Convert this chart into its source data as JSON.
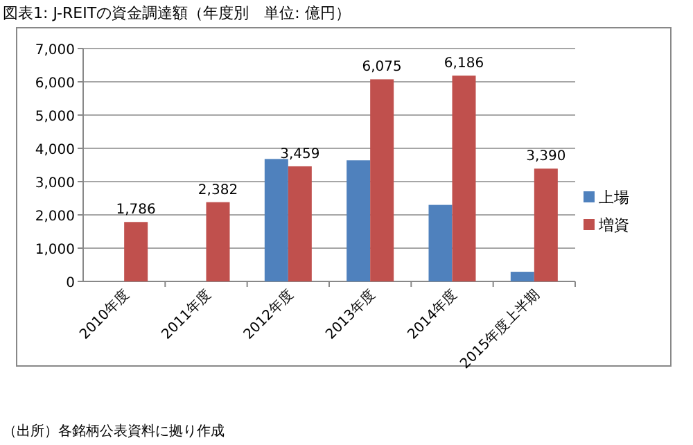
{
  "chart_data": {
    "type": "bar",
    "title": "図表1: J-REITの資金調達額（年度別　単位: 億円）",
    "categories": [
      "2010年度",
      "2011年度",
      "2012年度",
      "2013年度",
      "2014年度",
      "2015年度上半期"
    ],
    "series": [
      {
        "name": "上場",
        "color": "#4f81bd",
        "values": [
          null,
          null,
          3680,
          3640,
          2300,
          290
        ]
      },
      {
        "name": "増資",
        "color": "#c0504d",
        "values": [
          1786,
          2382,
          3459,
          6075,
          6186,
          3390
        ],
        "value_labels": [
          "1,786",
          "2,382",
          "3,459",
          "6,075",
          "6,186",
          "3,390"
        ]
      }
    ],
    "ylim": [
      0,
      7000
    ],
    "yticks": [
      {
        "value": 0,
        "label": "0"
      },
      {
        "value": 1000,
        "label": "1,000"
      },
      {
        "value": 2000,
        "label": "2,000"
      },
      {
        "value": 3000,
        "label": "3,000"
      },
      {
        "value": 4000,
        "label": "4,000"
      },
      {
        "value": 5000,
        "label": "5,000"
      },
      {
        "value": 6000,
        "label": "6,000"
      },
      {
        "value": 7000,
        "label": "7,000"
      }
    ],
    "grid": "y",
    "legend": "right",
    "annotations": [
      "（出所）各銘柄公表資料に拠り作成"
    ]
  }
}
